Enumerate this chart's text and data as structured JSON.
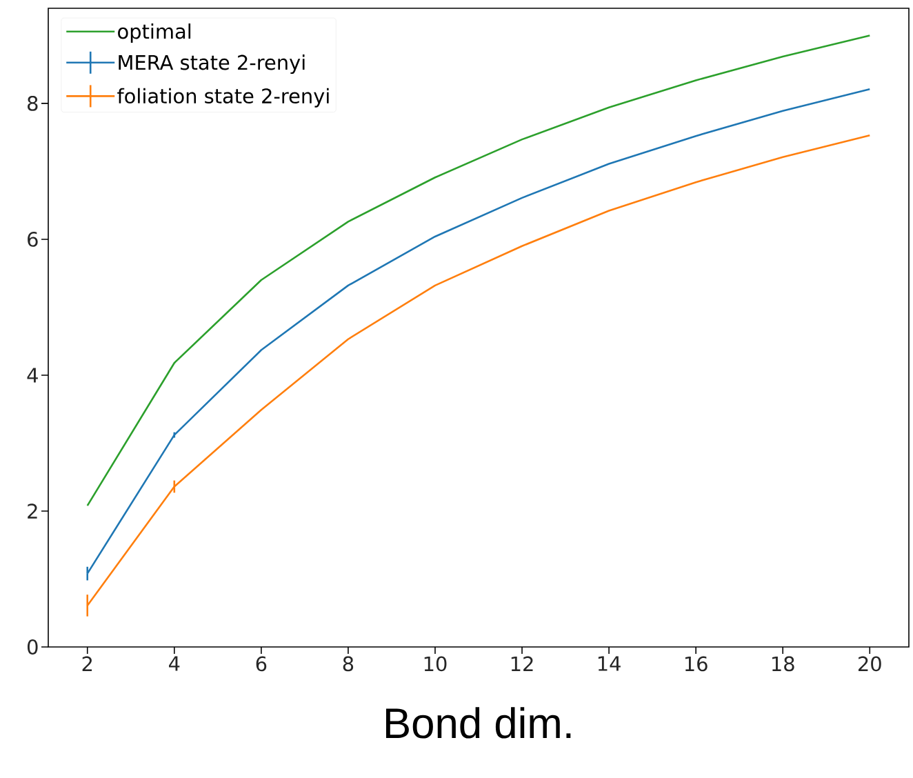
{
  "chart_data": {
    "type": "line",
    "xlabel": "Bond dim.",
    "x": [
      2,
      4,
      6,
      8,
      10,
      12,
      14,
      16,
      18,
      20
    ],
    "series": [
      {
        "name": "optimal",
        "color": "#2ca02c",
        "values": [
          2.08,
          4.18,
          5.4,
          6.26,
          6.91,
          7.47,
          7.94,
          8.34,
          8.69,
          9.0
        ]
      },
      {
        "name": "MERA state 2-renyi",
        "color": "#1f77b4",
        "values": [
          1.08,
          3.12,
          4.37,
          5.32,
          6.04,
          6.61,
          7.11,
          7.52,
          7.89,
          8.21
        ],
        "errors": [
          0.1,
          0.04,
          null,
          null,
          null,
          null,
          null,
          null,
          null,
          null
        ]
      },
      {
        "name": "foliation state 2-renyi",
        "color": "#ff7f0e",
        "values": [
          0.61,
          2.36,
          3.49,
          4.53,
          5.32,
          5.9,
          6.42,
          6.84,
          7.21,
          7.53
        ],
        "errors": [
          0.16,
          0.09,
          null,
          null,
          null,
          null,
          null,
          null,
          null,
          null
        ]
      }
    ],
    "xlim": [
      1.1,
      20.9
    ],
    "ylim": [
      0,
      9.4
    ],
    "xticks": [
      2,
      4,
      6,
      8,
      10,
      12,
      14,
      16,
      18,
      20
    ],
    "yticks": [
      0,
      2,
      4,
      6,
      8
    ],
    "legend": "top left"
  }
}
